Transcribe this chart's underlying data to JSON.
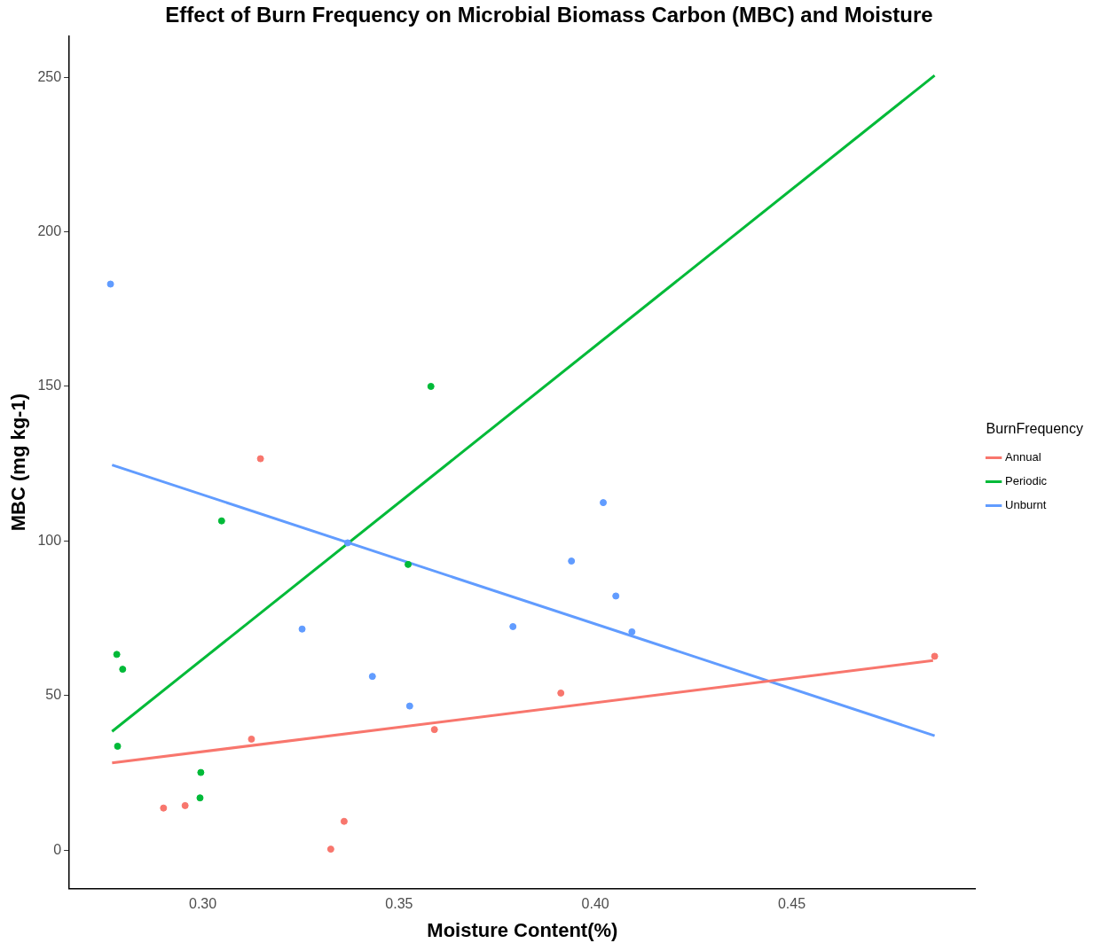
{
  "chart_data": {
    "type": "scatter",
    "title": "Effect of Burn Frequency on Microbial Biomass Carbon (MBC) and Moisture",
    "xlabel": "Moisture Content(%)",
    "ylabel": "MBC (mg kg-1)",
    "legend_title": "BurnFrequency",
    "legend": "right",
    "grid": false,
    "marker": "circle",
    "xlim": [
      0.266,
      0.4968
    ],
    "ylim": [
      -12.4,
      263.3
    ],
    "xticks": [
      {
        "value": 0.3,
        "label": "0.30"
      },
      {
        "value": 0.35,
        "label": "0.35"
      },
      {
        "value": 0.4,
        "label": "0.40"
      },
      {
        "value": 0.45,
        "label": "0.45"
      }
    ],
    "yticks": [
      0,
      50,
      100,
      150,
      200,
      250
    ],
    "series": [
      {
        "name": "Annual",
        "color": "#f8766d",
        "x": [
          0.3147,
          0.3124,
          0.29,
          0.2955,
          0.3326,
          0.336,
          0.359,
          0.3912,
          0.4864
        ],
        "values": [
          126.6,
          35.9,
          13.6,
          14.4,
          0.3,
          9.3,
          39,
          50.8,
          62.7
        ]
      },
      {
        "name": "Periodic",
        "color": "#00ba38",
        "x": [
          0.2781,
          0.2796,
          0.2783,
          0.3048,
          0.2995,
          0.2993,
          0.3581,
          0.3523
        ],
        "values": [
          63.3,
          58.5,
          33.6,
          106.5,
          25.1,
          16.9,
          150,
          92.4
        ]
      },
      {
        "name": "Unburnt",
        "color": "#619cff",
        "x": [
          0.2765,
          0.3253,
          0.3432,
          0.3527,
          0.3369,
          0.379,
          0.3939,
          0.402,
          0.4052,
          0.4093
        ],
        "values": [
          183.1,
          71.5,
          56.2,
          46.6,
          99.4,
          72.3,
          93.5,
          112.4,
          82.2,
          70.6
        ]
      },
      {
        "type": "line",
        "marker": "none",
        "color": "#f8766d",
        "x": [
          0.2769,
          0.486
        ],
        "values": [
          28.2,
          61.3
        ]
      },
      {
        "type": "line",
        "marker": "none",
        "color": "#00ba38",
        "x": [
          0.2769,
          0.4864
        ],
        "values": [
          38.4,
          250.6
        ]
      },
      {
        "type": "line",
        "marker": "none",
        "color": "#619cff",
        "x": [
          0.2769,
          0.4864
        ],
        "values": [
          124.6,
          37
        ]
      }
    ]
  }
}
